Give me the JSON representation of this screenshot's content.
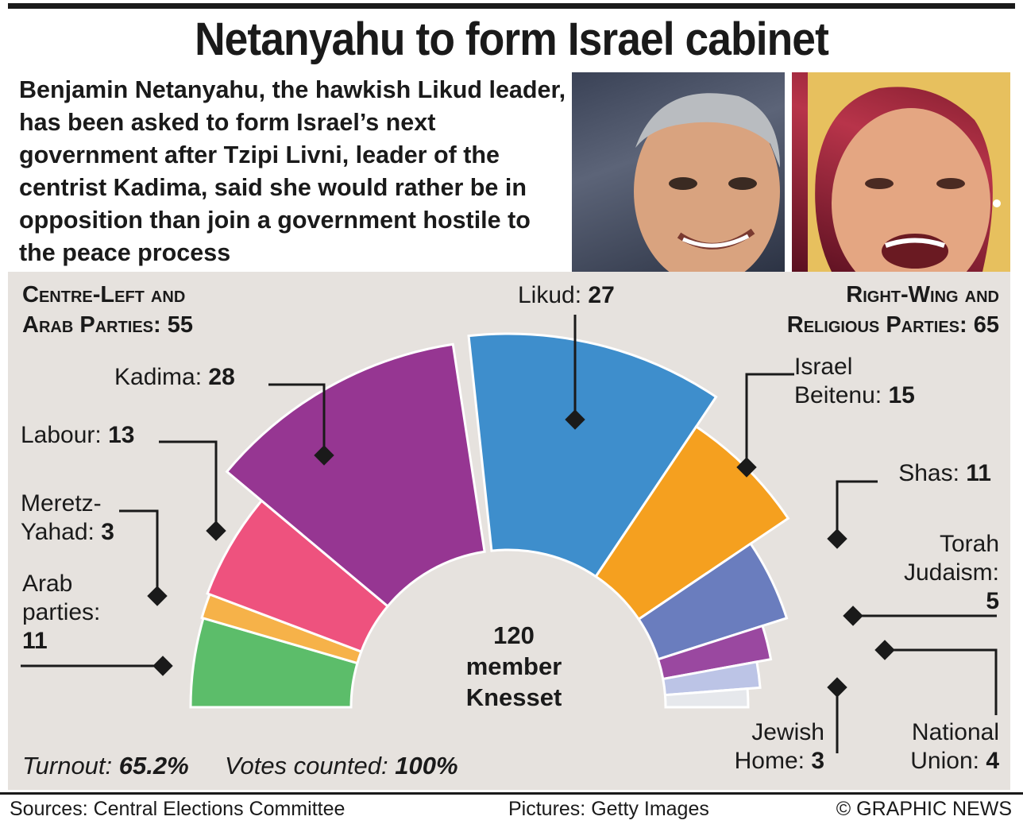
{
  "title": "Netanyahu to form Israel cabinet",
  "intro": "Benjamin Netanyahu, the hawkish Likud leader, has been asked to form Israel’s next government after Tzipi Livni, leader of the centrist Kadima, said she would rather be in opposition than join a government hostile to the peace process",
  "blocs": {
    "left_line1": "Centre-Left and",
    "left_line2": "Arab Parties: 55",
    "right_line1": "Right-Wing and",
    "right_line2": "Religious Parties: 65"
  },
  "center_label": [
    "120",
    "member",
    "Knesset"
  ],
  "stats": {
    "turnout_label": "Turnout:",
    "turnout_value": "65.2%",
    "counted_label": "Votes counted:",
    "counted_value": "100%"
  },
  "footer": {
    "sources": "Sources: Central Elections Committee",
    "pictures": "Pictures: Getty Images",
    "credit": "© GRAPHIC NEWS"
  },
  "chart_data": {
    "type": "pie",
    "subtype": "semicircle-parliament",
    "total_seats": 120,
    "groups": [
      {
        "name": "Centre-Left and Arab Parties",
        "seats": 55
      },
      {
        "name": "Right-Wing and Religious Parties",
        "seats": 65
      }
    ],
    "series": [
      {
        "name": "Arab parties",
        "label_line1": "Arab",
        "label_line2": "parties:",
        "label_value": "11",
        "value": 11,
        "color": "#5cbd6a",
        "group": 0
      },
      {
        "name": "Meretz-Yahad",
        "label_line1": "Meretz-",
        "label_line2": "Yahad:",
        "label_value": "3",
        "value": 3,
        "color": "#f6b249",
        "group": 0
      },
      {
        "name": "Labour",
        "label_line1": "Labour:",
        "label_line2": "",
        "label_value": "13",
        "value": 13,
        "color": "#ee527e",
        "group": 0
      },
      {
        "name": "Kadima",
        "label_line1": "Kadima:",
        "label_line2": "",
        "label_value": "28",
        "value": 28,
        "color": "#963692",
        "group": 0
      },
      {
        "name": "Likud",
        "label_line1": "Likud:",
        "label_line2": "",
        "label_value": "27",
        "value": 27,
        "color": "#3e8ecc",
        "group": 1
      },
      {
        "name": "Israel Beitenu",
        "label_line1": "Israel",
        "label_line2": "Beitenu:",
        "label_value": "15",
        "value": 15,
        "color": "#f5a01f",
        "group": 1
      },
      {
        "name": "Shas",
        "label_line1": "Shas:",
        "label_line2": "",
        "label_value": "11",
        "value": 11,
        "color": "#6a7dbe",
        "group": 1
      },
      {
        "name": "Torah Judaism",
        "label_line1": "Torah",
        "label_line2": "Judaism:",
        "label_value": "5",
        "value": 5,
        "color": "#9a48a0",
        "group": 1
      },
      {
        "name": "National Union",
        "label_line1": "National",
        "label_line2": "Union:",
        "label_value": "4",
        "value": 4,
        "color": "#bcc4e6",
        "group": 1
      },
      {
        "name": "Jewish Home",
        "label_line1": "Jewish",
        "label_line2": "Home:",
        "label_value": "3",
        "value": 3,
        "color": "#e6e8ec",
        "group": 1
      }
    ]
  }
}
